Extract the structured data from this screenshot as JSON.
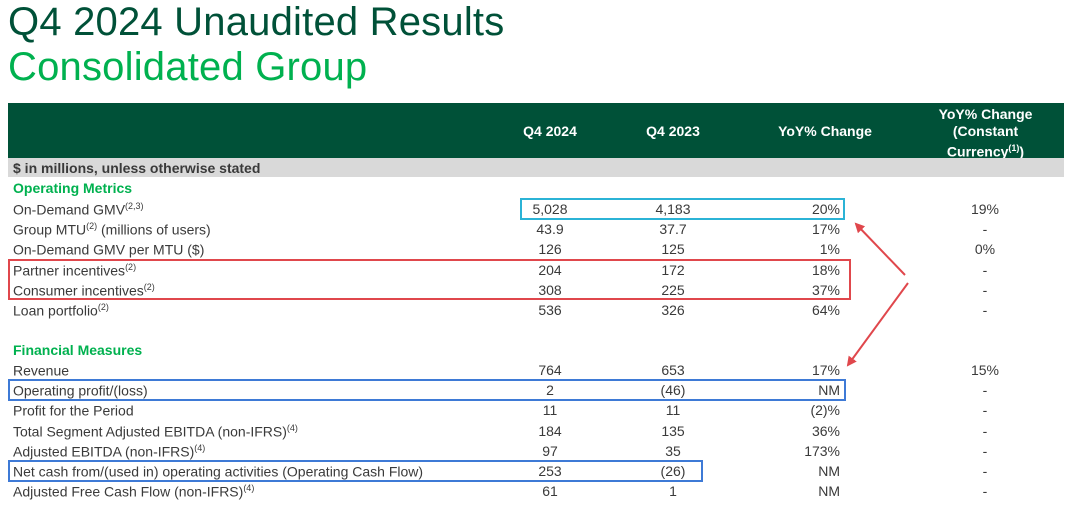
{
  "title": {
    "line1": "Q4 2024 Unaudited Results",
    "line2": "Consolidated Group"
  },
  "header": {
    "col1": "Q4 2024",
    "col2": "Q4 2023",
    "col3": "YoY% Change",
    "col4_line1": "YoY% Change",
    "col4_line2": "(Constant",
    "col4_line3": "Currency",
    "col4_sup": "(1)",
    "col4_close": ")"
  },
  "subheader": "$ in millions, unless otherwise stated",
  "sections": {
    "operating": "Operating Metrics",
    "financial": "Financial Measures"
  },
  "operating_rows": [
    {
      "label": "On-Demand GMV",
      "sup": "(2,3)",
      "suffix": "",
      "q4_2024": "5,028",
      "q4_2023": "4,183",
      "yoy": "20%",
      "yoy_cc": "19%"
    },
    {
      "label": "Group MTU",
      "sup": "(2)",
      "suffix": " (millions of users)",
      "q4_2024": "43.9",
      "q4_2023": "37.7",
      "yoy": "17%",
      "yoy_cc": "-"
    },
    {
      "label": "On-Demand GMV per MTU ($)",
      "sup": "",
      "suffix": "",
      "q4_2024": "126",
      "q4_2023": "125",
      "yoy": "1%",
      "yoy_cc": "0%"
    },
    {
      "label": "Partner incentives",
      "sup": "(2)",
      "suffix": "",
      "q4_2024": "204",
      "q4_2023": "172",
      "yoy": "18%",
      "yoy_cc": "-"
    },
    {
      "label": "Consumer incentives",
      "sup": "(2)",
      "suffix": "",
      "q4_2024": "308",
      "q4_2023": "225",
      "yoy": "37%",
      "yoy_cc": "-"
    },
    {
      "label": "Loan portfolio",
      "sup": "(2)",
      "suffix": "",
      "q4_2024": "536",
      "q4_2023": "326",
      "yoy": "64%",
      "yoy_cc": "-"
    }
  ],
  "financial_rows": [
    {
      "label": "Revenue",
      "sup": "",
      "suffix": "",
      "q4_2024": "764",
      "q4_2023": "653",
      "yoy": "17%",
      "yoy_cc": "15%"
    },
    {
      "label": "Operating profit/(loss)",
      "sup": "",
      "suffix": "",
      "q4_2024": "2",
      "q4_2023": "(46)",
      "yoy": "NM",
      "yoy_cc": "-"
    },
    {
      "label": "Profit for the Period",
      "sup": "",
      "suffix": "",
      "q4_2024": "11",
      "q4_2023": "11",
      "yoy": "(2)%",
      "yoy_cc": "-"
    },
    {
      "label": "Total Segment Adjusted EBITDA (non-IFRS)",
      "sup": "(4)",
      "suffix": "",
      "q4_2024": "184",
      "q4_2023": "135",
      "yoy": "36%",
      "yoy_cc": "-"
    },
    {
      "label": "Adjusted EBITDA (non-IFRS)",
      "sup": "(4)",
      "suffix": "",
      "q4_2024": "97",
      "q4_2023": "35",
      "yoy": "173%",
      "yoy_cc": "-"
    },
    {
      "label": "Net cash from/(used in) operating activities (Operating Cash Flow)",
      "sup": "",
      "suffix": "",
      "q4_2024": "253",
      "q4_2023": "(26)",
      "yoy": "NM",
      "yoy_cc": "-"
    },
    {
      "label": "Adjusted Free Cash Flow (non-IFRS)",
      "sup": "(4)",
      "suffix": "",
      "q4_2024": "61",
      "q4_2023": "1",
      "yoy": "NM",
      "yoy_cc": "-"
    }
  ],
  "colors": {
    "dark_green": "#005138",
    "bright_green": "#00b14f",
    "cyan_box": "#2bb3d6",
    "red_box": "#e0474c",
    "blue_box": "#3e7ad6"
  }
}
